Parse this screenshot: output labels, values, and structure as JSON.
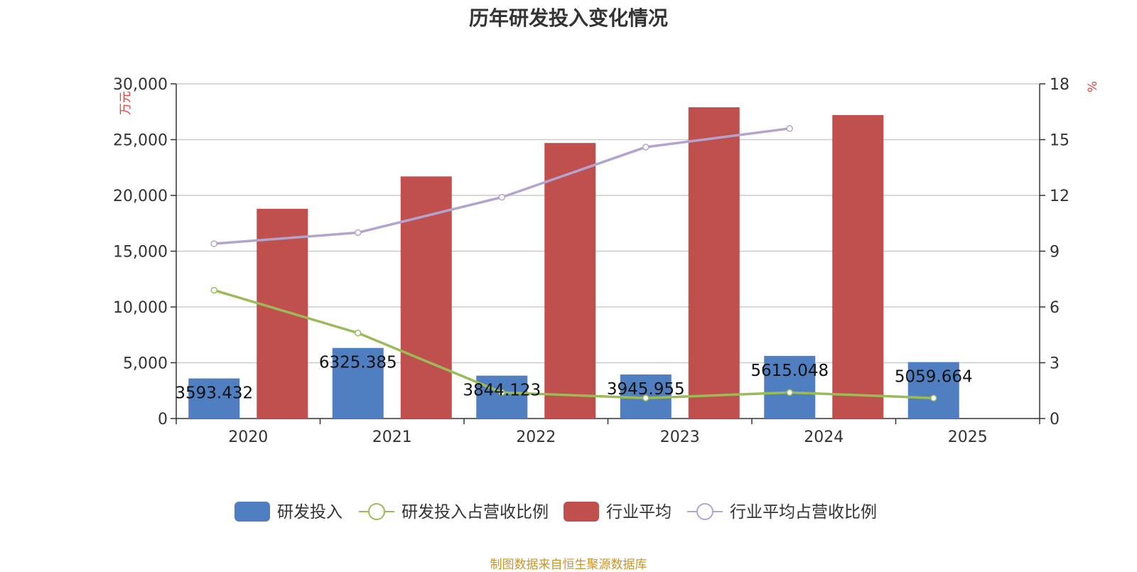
{
  "chart_data": {
    "type": "bar",
    "title": "历年研发投入变化情况",
    "categories": [
      "2020",
      "2021",
      "2022",
      "2023",
      "2024",
      "2025"
    ],
    "left_axis": {
      "unit": "万元",
      "range": [
        0,
        30000
      ],
      "ticks": [
        "0",
        "5,000",
        "10,000",
        "15,000",
        "20,000",
        "25,000",
        "30,000"
      ]
    },
    "right_axis": {
      "unit": "%",
      "range": [
        0,
        18
      ],
      "ticks": [
        "0",
        "3",
        "6",
        "9",
        "12",
        "15",
        "18"
      ]
    },
    "grid": true,
    "legend_position": "bottom",
    "series": [
      {
        "name": "研发投入",
        "type": "bar",
        "axis": "left",
        "color": "#4f7fc0",
        "values": [
          3593.432,
          6325.385,
          3844.123,
          3945.955,
          5615.048,
          5059.664
        ],
        "labels": [
          "3593.432",
          "6325.385",
          "3844.123",
          "3945.955",
          "5615.048",
          "5059.664"
        ]
      },
      {
        "name": "研发投入占营收比例",
        "type": "line",
        "axis": "right",
        "color": "#9bbb59",
        "values": [
          6.9,
          4.6,
          1.4,
          1.1,
          1.4,
          1.1
        ]
      },
      {
        "name": "行业平均",
        "type": "bar",
        "axis": "left",
        "color": "#c0504d",
        "values": [
          18800,
          21700,
          24700,
          27900,
          27200,
          null
        ]
      },
      {
        "name": "行业平均占营收比例",
        "type": "line",
        "axis": "right",
        "color": "#b3a4cf",
        "values": [
          9.4,
          10.0,
          11.9,
          14.6,
          15.6,
          null
        ]
      }
    ],
    "source_note": "制图数据来自恒生聚源数据库"
  }
}
